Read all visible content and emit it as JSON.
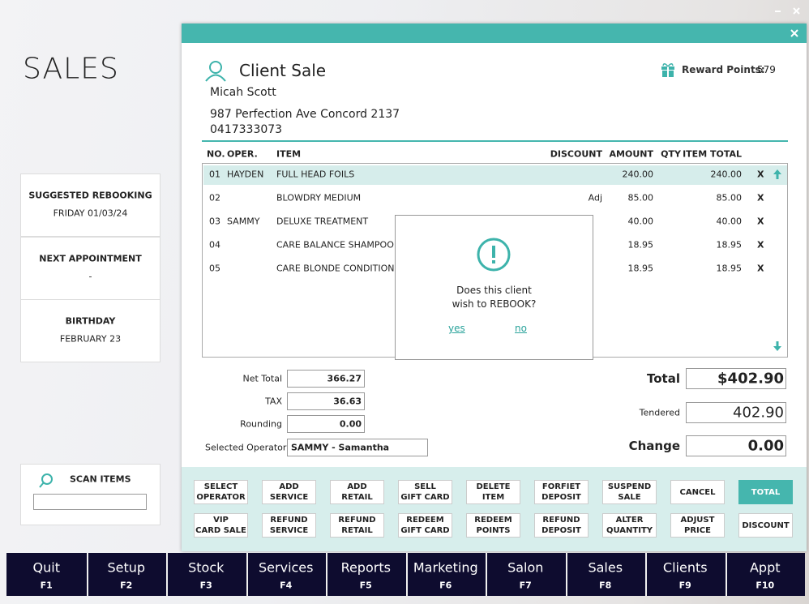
{
  "page_title": "SALES",
  "info_cards": [
    {
      "label": "SUGGESTED REBOOKING",
      "value": "FRIDAY 01/03/24"
    },
    {
      "label": "NEXT APPOINTMENT",
      "value": "-"
    },
    {
      "label": "BIRTHDAY",
      "value": "FEBRUARY 23"
    }
  ],
  "scan": {
    "label": "SCAN ITEMS"
  },
  "dialog": {
    "title": "Client Sale",
    "client_name": "Micah Scott",
    "address": "987 Perfection Ave Concord 2137",
    "phone": "0417333073",
    "reward_label": "Reward Points:",
    "reward_points": "579"
  },
  "table": {
    "headers": [
      "NO.",
      "OPER.",
      "ITEM",
      "DISCOUNT",
      "AMOUNT",
      "QTY",
      "ITEM TOTAL"
    ],
    "rows": [
      {
        "no": "01",
        "oper": "HAYDEN",
        "item": "FULL HEAD FOILS",
        "amount": "240.00",
        "total": "240.00",
        "remove": "X"
      },
      {
        "no": "02",
        "item": "BLOWDRY MEDIUM",
        "discount": "Adj",
        "amount": "85.00",
        "total": "85.00",
        "remove": "X"
      },
      {
        "no": "03",
        "oper": "SAMMY",
        "item": "DELUXE TREATMENT",
        "amount": "40.00",
        "total": "40.00",
        "remove": "X"
      },
      {
        "no": "04",
        "item": "CARE BALANCE SHAMPOO",
        "amount": "18.95",
        "total": "18.95",
        "remove": "X"
      },
      {
        "no": "05",
        "item": "CARE BLONDE CONDITIONER",
        "amount": "18.95",
        "total": "18.95",
        "remove": "X"
      }
    ]
  },
  "totals": {
    "net_total": {
      "label": "Net Total",
      "value": "366.27"
    },
    "tax": {
      "label": "TAX",
      "value": "36.63"
    },
    "rounding": {
      "label": "Rounding",
      "value": "0.00"
    },
    "operator": {
      "label": "Selected Operator",
      "value": "SAMMY - Samantha"
    },
    "total": {
      "label": "Total",
      "value": "$402.90"
    },
    "tendered": {
      "label": "Tendered",
      "value": "402.90"
    },
    "change": {
      "label": "Change",
      "value": "0.00"
    }
  },
  "popup": {
    "question_line1": "Does this client",
    "question_line2": "wish to REBOOK?",
    "yes": "yes",
    "no": "no"
  },
  "buttons": [
    [
      "SELECT\nOPERATOR",
      "ADD\nSERVICE",
      "ADD\nRETAIL",
      "SELL\nGIFT CARD",
      "DELETE\nITEM",
      "FORFIET\nDEPOSIT",
      "SUSPEND\nSALE",
      "CANCEL",
      "TOTAL"
    ],
    [
      "VIP\nCARD SALE",
      "REFUND\nSERVICE",
      "REFUND\nRETAIL",
      "REDEEM\nGIFT CARD",
      "REDEEM\nPOINTS",
      "REFUND\nDEPOSIT",
      "ALTER\nQUANTITY",
      "ADJUST\nPRICE",
      "DISCOUNT"
    ]
  ],
  "nav": [
    {
      "label": "Quit",
      "key": "F1"
    },
    {
      "label": "Setup",
      "key": "F2"
    },
    {
      "label": "Stock",
      "key": "F3"
    },
    {
      "label": "Services",
      "key": "F4"
    },
    {
      "label": "Reports",
      "key": "F5"
    },
    {
      "label": "Marketing",
      "key": "F6"
    },
    {
      "label": "Salon",
      "key": "F7"
    },
    {
      "label": "Sales",
      "key": "F8"
    },
    {
      "label": "Clients",
      "key": "F9"
    },
    {
      "label": "Appt",
      "key": "F10"
    }
  ]
}
